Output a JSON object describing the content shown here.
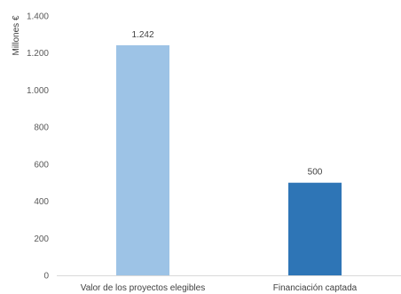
{
  "chart_data": {
    "type": "bar",
    "title": "",
    "xlabel": "",
    "ylabel": "Millones €",
    "ylim": [
      0,
      1400
    ],
    "yticks": [
      0,
      200,
      400,
      600,
      800,
      1000,
      1200,
      1400
    ],
    "ytick_labels": [
      "0",
      "200",
      "400",
      "600",
      "800",
      "1.000",
      "1.200",
      "1.400"
    ],
    "grid": false,
    "legend": "none",
    "categories": [
      "Valor de los proyectos elegibles",
      "Financiación captada"
    ],
    "values": [
      1242,
      500
    ],
    "data_labels": [
      "1.242",
      "500"
    ],
    "colors": [
      "#9dc3e6",
      "#2e75b6"
    ],
    "axis_color": "#d9d9d9"
  }
}
